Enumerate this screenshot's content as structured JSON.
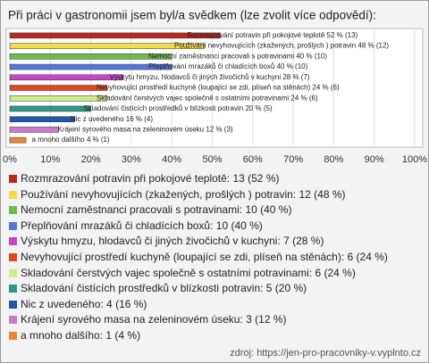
{
  "chart_data": {
    "type": "bar",
    "orientation": "horizontal",
    "title": "Při práci v gastronomii jsem byl/a svědkem (lze zvolit více odpovědí):",
    "categories": [
      "Rozmrazování potravin při pokojové teplotě",
      "Používání nevyhovujících (zkažených, prošlých ) potravin",
      "Nemocní zaměstnanci pracovali s potravinami",
      "Přeplňování mrazáků či chladících boxů",
      "Výskytu hmyzu, hlodavců či jiných živočichů v kuchyni",
      "Nevyhovující prostředí kuchyně (loupající se zdi, plíseň na stěnách)",
      "Skladování čerstvých vajec společně s ostatními potravinami",
      "Skladování čistících prostředků v blízkosti potravin",
      "Nic z uvedeného",
      "Krájení syrového masa na zeleninovém úseku",
      "a mnoho dalšího"
    ],
    "values": [
      52,
      48,
      40,
      40,
      28,
      24,
      24,
      20,
      16,
      12,
      4
    ],
    "value_labels": [
      "Rozmrazování potravin při pokojové teplotě 52 % (13)",
      "Používání nevyhovujících (zkažených, prošlých ) potravin 48 % (12)",
      "Nemocní zaměstnanci pracovali s potravinami 40 % (10)",
      "Přeplňování mrazáků či chladících boxů 40 % (10)",
      "Výskytu hmyzu, hlodavců či jiných živočichů v kuchyni 28 % (7)",
      "Nevyhovující prostředí kuchyně (loupající se zdi, plíseň na stěnách) 24 % (6)",
      "Skladování čerstvých vajec společně s ostatními potravinami 24 % (6)",
      "Skladování čistících prostředků v blízkosti potravin 20 % (5)",
      "Nic z uvedeného 16 % (4)",
      "Krájení syrového masa na zeleninovém úseku 12 % (3)",
      "a mnoho dalšího 4 % (1)"
    ],
    "legend_labels": [
      "Rozmrazování potravin při pokojové teplotě: 13 (52 %)",
      "Používání nevyhovujících (zkažených, prošlých ) potravin: 12 (48 %)",
      "Nemocní zaměstnanci pracovali s potravinami: 10 (40 %)",
      "Přeplňování mrazáků či chladících boxů: 10 (40 %)",
      "Výskytu hmyzu, hlodavců či jiných živočichů v kuchyni: 7 (28 %)",
      "Nevyhovující prostředí kuchyně (loupající se zdi, plíseň na stěnách): 6 (24 %)",
      "Skladování čerstvých vajec společně s ostatními potravinami: 6 (24 %)",
      "Skladování čistících prostředků v blízkosti potravin: 5 (20 %)",
      "Nic z uvedeného: 4 (16 %)",
      "Krájení syrového masa na zeleninovém úseku: 3 (12 %)",
      "a mnoho dalšího: 1 (4 %)"
    ],
    "colors": [
      "#b8281e",
      "#f2dc4a",
      "#6cbd4e",
      "#5576dc",
      "#c845c8",
      "#dc4a22",
      "#cdec8a",
      "#2f9685",
      "#2157a8",
      "#c77ccb",
      "#ec8632"
    ],
    "xlim": [
      0,
      100
    ],
    "xticks": [
      {
        "value": 0,
        "label": "0%"
      },
      {
        "value": 10,
        "label": "10%"
      },
      {
        "value": 20,
        "label": "20%"
      },
      {
        "value": 30,
        "label": "30%"
      },
      {
        "value": 40,
        "label": "40%"
      },
      {
        "value": 50,
        "label": "50%"
      },
      {
        "value": 60,
        "label": "60%"
      },
      {
        "value": 70,
        "label": "70%"
      },
      {
        "value": 80,
        "label": "80%"
      },
      {
        "value": 90,
        "label": "90%"
      },
      {
        "value": 100,
        "label": "100%"
      }
    ],
    "grid": true,
    "source": "zdroj: https://jen-pro-pracovniky-v.vyplnto.cz"
  }
}
